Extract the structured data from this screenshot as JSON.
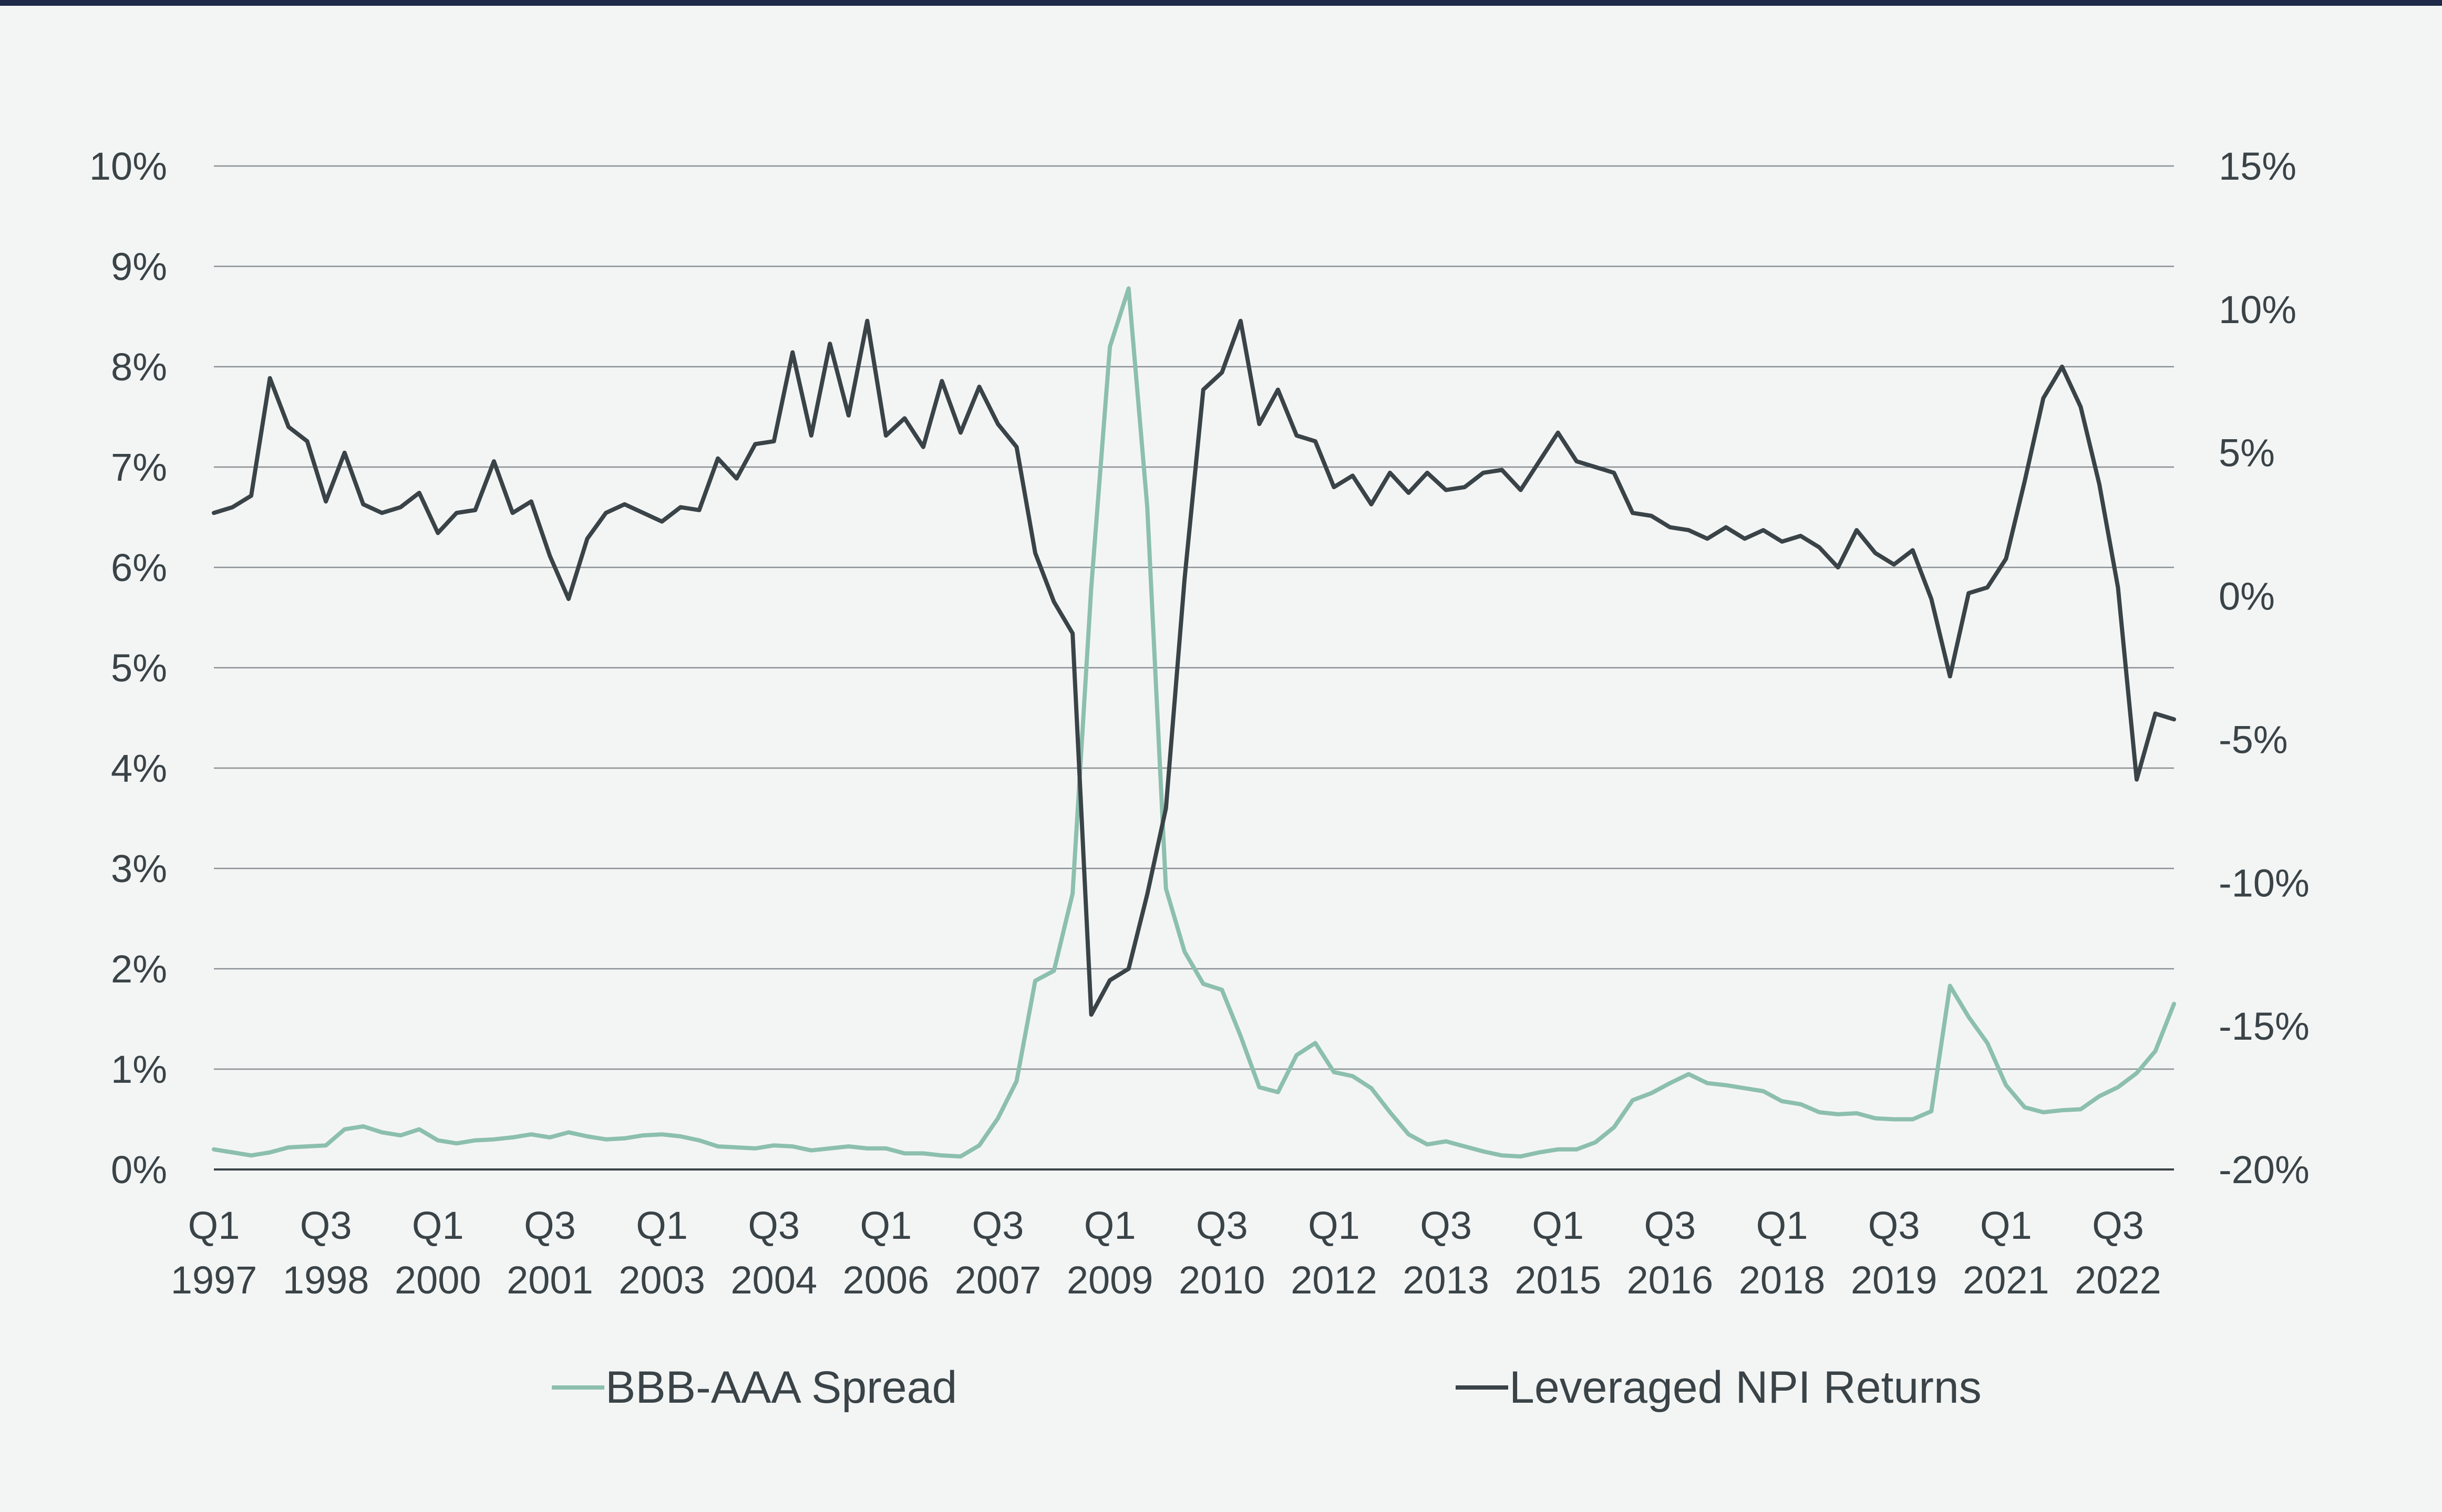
{
  "chart_data": {
    "type": "line",
    "title": "",
    "xlabel": "",
    "ylabel": "",
    "x_tick_labels": [
      [
        "Q1",
        "1997"
      ],
      [
        "Q3",
        "1998"
      ],
      [
        "Q1",
        "2000"
      ],
      [
        "Q3",
        "2001"
      ],
      [
        "Q1",
        "2003"
      ],
      [
        "Q3",
        "2004"
      ],
      [
        "Q1",
        "2006"
      ],
      [
        "Q3",
        "2007"
      ],
      [
        "Q1",
        "2009"
      ],
      [
        "Q3",
        "2010"
      ],
      [
        "Q1",
        "2012"
      ],
      [
        "Q3",
        "2013"
      ],
      [
        "Q1",
        "2015"
      ],
      [
        "Q3",
        "2016"
      ],
      [
        "Q1",
        "2018"
      ],
      [
        "Q3",
        "2019"
      ],
      [
        "Q1",
        "2021"
      ],
      [
        "Q3",
        "2022"
      ]
    ],
    "x_tick_quarters": [
      "1997-Q1",
      "1998-Q3",
      "2000-Q1",
      "2001-Q3",
      "2003-Q1",
      "2004-Q3",
      "2006-Q1",
      "2007-Q3",
      "2009-Q1",
      "2010-Q3",
      "2012-Q1",
      "2013-Q3",
      "2015-Q1",
      "2016-Q3",
      "2018-Q1",
      "2019-Q3",
      "2021-Q1",
      "2022-Q3"
    ],
    "x_range": [
      "1997-Q1",
      "2023-Q2"
    ],
    "y_left": {
      "ticks": [
        "0%",
        "1%",
        "2%",
        "3%",
        "4%",
        "5%",
        "6%",
        "7%",
        "8%",
        "9%",
        "10%"
      ],
      "ylim": [
        0,
        10
      ]
    },
    "y_right": {
      "ticks": [
        "-20%",
        "-15%",
        "-10%",
        "-5%",
        "0%",
        "5%",
        "10%",
        "15%"
      ],
      "ylim": [
        -20,
        15
      ]
    },
    "grid": true,
    "legend_position": "bottom",
    "series": [
      {
        "name": "BBB-AAA Spread",
        "axis": "left",
        "color": "#8cbfae",
        "start": "1997-Q1",
        "values": [
          0.2,
          0.17,
          0.14,
          0.17,
          0.22,
          0.23,
          0.24,
          0.4,
          0.43,
          0.37,
          0.34,
          0.4,
          0.29,
          0.26,
          0.29,
          0.3,
          0.32,
          0.35,
          0.32,
          0.37,
          0.33,
          0.3,
          0.31,
          0.34,
          0.35,
          0.33,
          0.29,
          0.23,
          0.22,
          0.21,
          0.24,
          0.23,
          0.19,
          0.21,
          0.23,
          0.21,
          0.21,
          0.16,
          0.16,
          0.14,
          0.13,
          0.24,
          0.51,
          0.88,
          1.88,
          1.98,
          2.75,
          5.8,
          8.2,
          8.78,
          6.6,
          2.8,
          2.17,
          1.85,
          1.79,
          1.33,
          0.82,
          0.77,
          1.14,
          1.26,
          0.97,
          0.93,
          0.81,
          0.57,
          0.35,
          0.25,
          0.28,
          0.23,
          0.18,
          0.14,
          0.13,
          0.17,
          0.2,
          0.2,
          0.27,
          0.42,
          0.69,
          0.76,
          0.86,
          0.95,
          0.86,
          0.84,
          0.81,
          0.78,
          0.68,
          0.65,
          0.57,
          0.55,
          0.56,
          0.51,
          0.5,
          0.5,
          0.58,
          1.83,
          1.52,
          1.26,
          0.84,
          0.62,
          0.57,
          0.59,
          0.6,
          0.73,
          0.82,
          0.96,
          1.18,
          1.65
        ]
      },
      {
        "name": "Leveraged NPI Returns",
        "axis": "right",
        "color": "#3a4347",
        "start": "1997-Q1",
        "values": [
          2.9,
          3.1,
          3.5,
          7.6,
          5.9,
          5.4,
          3.3,
          5.0,
          3.2,
          2.9,
          3.1,
          3.6,
          2.2,
          2.9,
          3.0,
          4.7,
          2.9,
          3.3,
          1.4,
          -0.1,
          2.0,
          2.9,
          3.2,
          2.9,
          2.6,
          3.1,
          3.0,
          4.8,
          4.1,
          5.3,
          5.4,
          8.5,
          5.6,
          8.8,
          6.3,
          9.6,
          5.6,
          6.2,
          5.2,
          7.5,
          5.7,
          7.3,
          6.0,
          5.2,
          1.5,
          -0.2,
          -1.3,
          -14.6,
          -13.4,
          -13.0,
          -10.4,
          -7.4,
          0.6,
          7.2,
          7.8,
          9.6,
          6.0,
          7.2,
          5.6,
          5.4,
          3.8,
          4.2,
          3.2,
          4.3,
          3.6,
          4.3,
          3.7,
          3.8,
          4.3,
          4.4,
          3.7,
          4.7,
          5.7,
          4.7,
          4.5,
          4.3,
          2.9,
          2.8,
          2.4,
          2.3,
          2.0,
          2.4,
          2.0,
          2.3,
          1.9,
          2.1,
          1.7,
          1.0,
          2.3,
          1.5,
          1.1,
          1.6,
          -0.1,
          -2.8,
          0.1,
          0.3,
          1.3,
          4.0,
          6.9,
          8.0,
          6.6,
          3.9,
          0.3,
          -6.4,
          -4.1,
          -4.3
        ]
      }
    ]
  }
}
